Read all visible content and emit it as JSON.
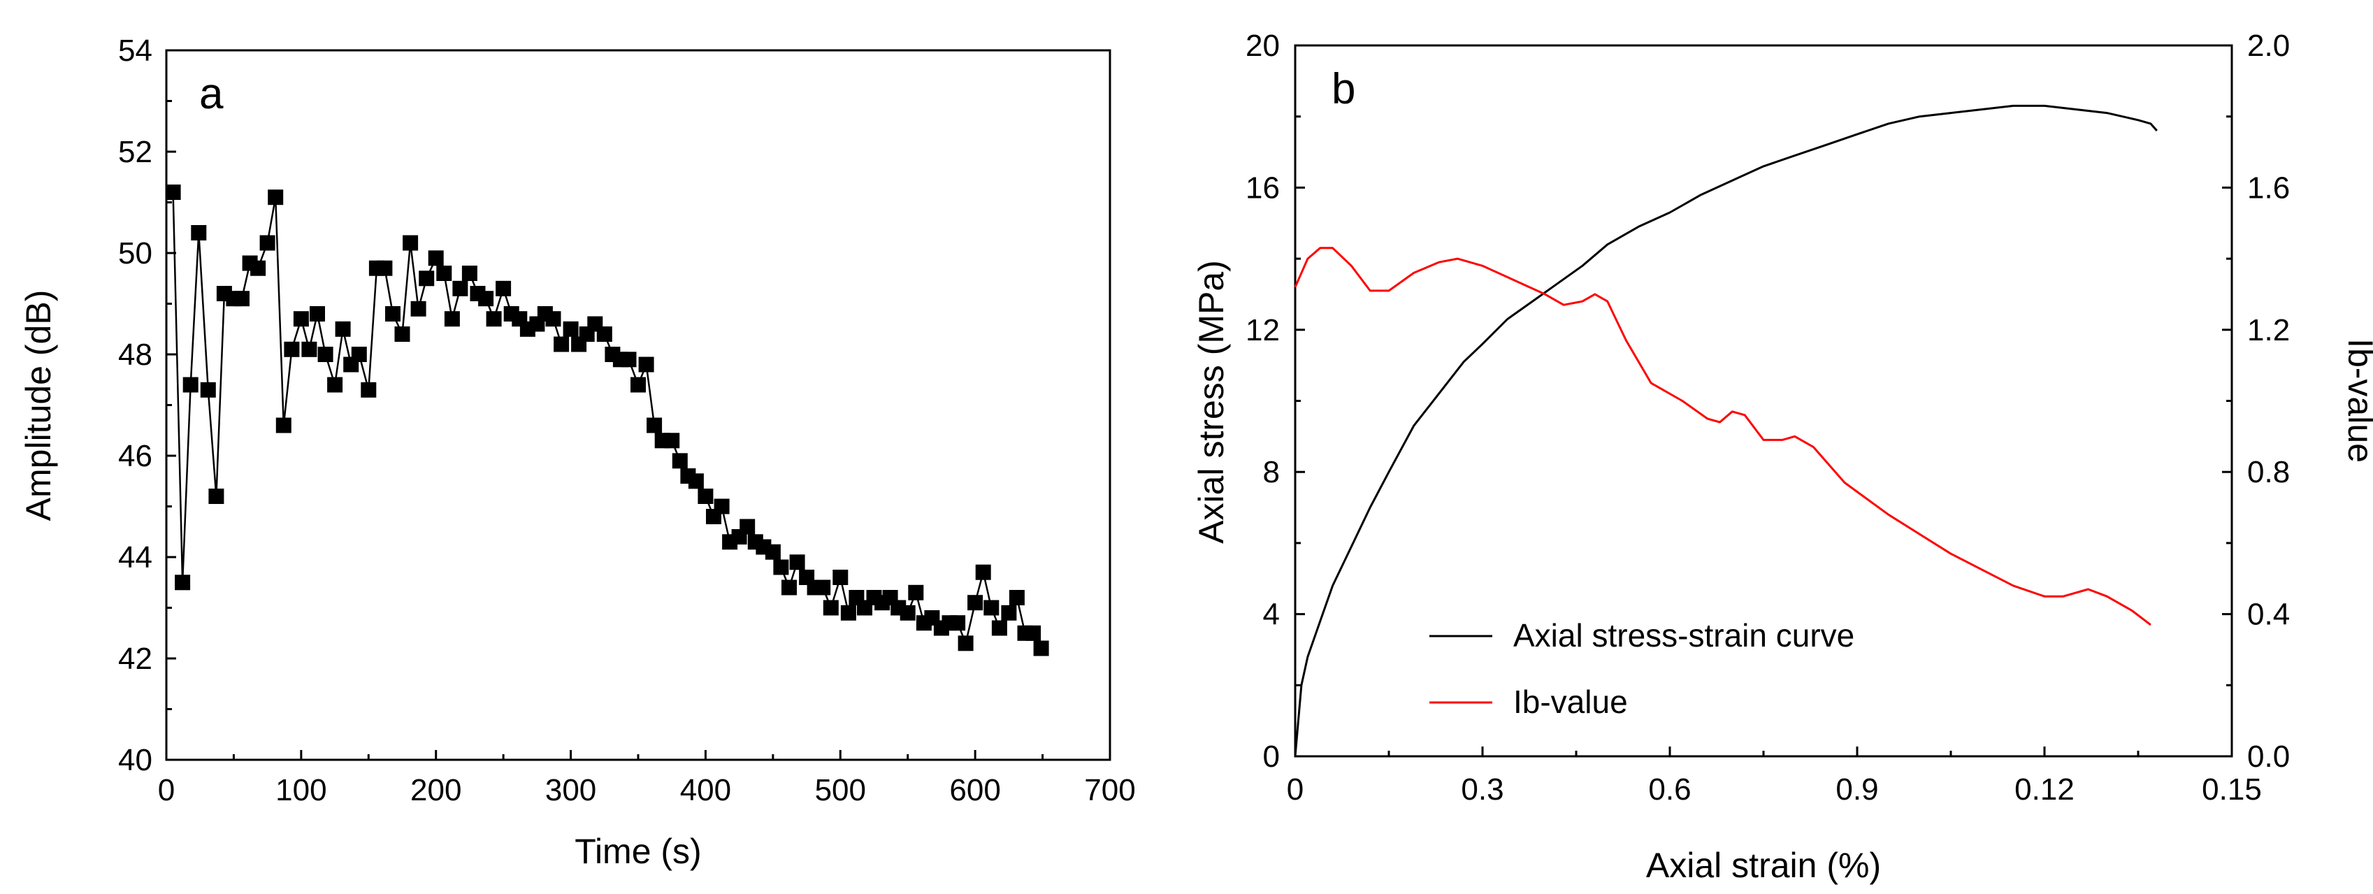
{
  "chart_data": [
    {
      "type": "line",
      "panel_label": "a",
      "xlabel": "Time (s)",
      "ylabel": "Amplitude (dB)",
      "xlim": [
        0,
        700
      ],
      "ylim": [
        40,
        54
      ],
      "xticks": [
        "0",
        "100",
        "200",
        "300",
        "400",
        "500",
        "600",
        "700"
      ],
      "yticks": [
        "40",
        "42",
        "44",
        "46",
        "48",
        "50",
        "52",
        "54"
      ],
      "marker": "square",
      "color": "#000000",
      "series": [
        {
          "name": "Amplitude",
          "points": [
            [
              5,
              51.2
            ],
            [
              12,
              43.5
            ],
            [
              18,
              47.4
            ],
            [
              24,
              50.4
            ],
            [
              31,
              47.3
            ],
            [
              37,
              45.2
            ],
            [
              43,
              49.2
            ],
            [
              50,
              49.1
            ],
            [
              56,
              49.1
            ],
            [
              62,
              49.8
            ],
            [
              68,
              49.7
            ],
            [
              75,
              50.2
            ],
            [
              81,
              51.1
            ],
            [
              87,
              46.6
            ],
            [
              93,
              48.1
            ],
            [
              100,
              48.7
            ],
            [
              106,
              48.1
            ],
            [
              112,
              48.8
            ],
            [
              118,
              48.0
            ],
            [
              125,
              47.4
            ],
            [
              131,
              48.5
            ],
            [
              137,
              47.8
            ],
            [
              143,
              48.0
            ],
            [
              150,
              47.3
            ],
            [
              156,
              49.7
            ],
            [
              162,
              49.7
            ],
            [
              168,
              48.8
            ],
            [
              175,
              48.4
            ],
            [
              181,
              50.2
            ],
            [
              187,
              48.9
            ],
            [
              193,
              49.5
            ],
            [
              200,
              49.9
            ],
            [
              206,
              49.6
            ],
            [
              212,
              48.7
            ],
            [
              218,
              49.3
            ],
            [
              225,
              49.6
            ],
            [
              231,
              49.2
            ],
            [
              237,
              49.1
            ],
            [
              243,
              48.7
            ],
            [
              250,
              49.3
            ],
            [
              256,
              48.8
            ],
            [
              262,
              48.7
            ],
            [
              268,
              48.5
            ],
            [
              275,
              48.6
            ],
            [
              281,
              48.8
            ],
            [
              287,
              48.7
            ],
            [
              293,
              48.2
            ],
            [
              300,
              48.5
            ],
            [
              306,
              48.2
            ],
            [
              312,
              48.4
            ],
            [
              318,
              48.6
            ],
            [
              325,
              48.4
            ],
            [
              331,
              48.0
            ],
            [
              337,
              47.9
            ],
            [
              343,
              47.9
            ],
            [
              350,
              47.4
            ],
            [
              356,
              47.8
            ],
            [
              362,
              46.6
            ],
            [
              368,
              46.3
            ],
            [
              375,
              46.3
            ],
            [
              381,
              45.9
            ],
            [
              387,
              45.6
            ],
            [
              393,
              45.5
            ],
            [
              400,
              45.2
            ],
            [
              406,
              44.8
            ],
            [
              412,
              45.0
            ],
            [
              418,
              44.3
            ],
            [
              425,
              44.4
            ],
            [
              431,
              44.6
            ],
            [
              437,
              44.3
            ],
            [
              443,
              44.2
            ],
            [
              450,
              44.1
            ],
            [
              456,
              43.8
            ],
            [
              462,
              43.4
            ],
            [
              468,
              43.9
            ],
            [
              475,
              43.6
            ],
            [
              481,
              43.4
            ],
            [
              487,
              43.4
            ],
            [
              493,
              43.0
            ],
            [
              500,
              43.6
            ],
            [
              506,
              42.9
            ],
            [
              512,
              43.2
            ],
            [
              518,
              43.0
            ],
            [
              525,
              43.2
            ],
            [
              531,
              43.1
            ],
            [
              537,
              43.2
            ],
            [
              543,
              43.0
            ],
            [
              550,
              42.9
            ],
            [
              556,
              43.3
            ],
            [
              562,
              42.7
            ],
            [
              568,
              42.8
            ],
            [
              575,
              42.6
            ],
            [
              581,
              42.7
            ],
            [
              587,
              42.7
            ],
            [
              593,
              42.3
            ],
            [
              600,
              43.1
            ],
            [
              606,
              43.7
            ],
            [
              612,
              43.0
            ],
            [
              618,
              42.6
            ],
            [
              625,
              42.9
            ],
            [
              631,
              43.2
            ],
            [
              637,
              42.5
            ],
            [
              643,
              42.5
            ],
            [
              649,
              42.2
            ]
          ]
        }
      ]
    },
    {
      "type": "line",
      "panel_label": "b",
      "xlabel": "Axial strain (%)",
      "ylabel": "Axial stress (MPa)",
      "y2label": "Ib-value",
      "xlim": [
        0,
        0.15
      ],
      "ylim": [
        0,
        20
      ],
      "y2lim": [
        0,
        2.0
      ],
      "xticks": [
        "0",
        "0.3",
        "0.6",
        "0.9",
        "0.12",
        "0.15"
      ],
      "yticks": [
        "0",
        "4",
        "8",
        "12",
        "16",
        "20"
      ],
      "y2ticks": [
        "0.0",
        "0.4",
        "0.8",
        "1.2",
        "1.6",
        "2.0"
      ],
      "legend_position": "bottom-left",
      "series": [
        {
          "name": "Axial stress-strain curve",
          "axis": "left",
          "color": "#000000",
          "points": [
            [
              0,
              0
            ],
            [
              0.001,
              2.0
            ],
            [
              0.002,
              2.8
            ],
            [
              0.004,
              3.8
            ],
            [
              0.006,
              4.8
            ],
            [
              0.009,
              5.9
            ],
            [
              0.012,
              7.0
            ],
            [
              0.015,
              8.0
            ],
            [
              0.019,
              9.3
            ],
            [
              0.023,
              10.2
            ],
            [
              0.027,
              11.1
            ],
            [
              0.03,
              11.6
            ],
            [
              0.034,
              12.3
            ],
            [
              0.038,
              12.8
            ],
            [
              0.042,
              13.3
            ],
            [
              0.046,
              13.8
            ],
            [
              0.05,
              14.4
            ],
            [
              0.055,
              14.9
            ],
            [
              0.06,
              15.3
            ],
            [
              0.065,
              15.8
            ],
            [
              0.07,
              16.2
            ],
            [
              0.075,
              16.6
            ],
            [
              0.08,
              16.9
            ],
            [
              0.085,
              17.2
            ],
            [
              0.09,
              17.5
            ],
            [
              0.095,
              17.8
            ],
            [
              0.1,
              18.0
            ],
            [
              0.105,
              18.1
            ],
            [
              0.11,
              18.2
            ],
            [
              0.115,
              18.3
            ],
            [
              0.12,
              18.3
            ],
            [
              0.125,
              18.2
            ],
            [
              0.13,
              18.1
            ],
            [
              0.135,
              17.9
            ],
            [
              0.137,
              17.8
            ],
            [
              0.138,
              17.6
            ]
          ]
        },
        {
          "name": "Ib-value",
          "axis": "right",
          "color": "#ff0000",
          "points": [
            [
              0,
              1.32
            ],
            [
              0.002,
              1.4
            ],
            [
              0.004,
              1.43
            ],
            [
              0.006,
              1.43
            ],
            [
              0.009,
              1.38
            ],
            [
              0.012,
              1.31
            ],
            [
              0.015,
              1.31
            ],
            [
              0.019,
              1.36
            ],
            [
              0.023,
              1.39
            ],
            [
              0.026,
              1.4
            ],
            [
              0.03,
              1.38
            ],
            [
              0.035,
              1.34
            ],
            [
              0.04,
              1.3
            ],
            [
              0.043,
              1.27
            ],
            [
              0.046,
              1.28
            ],
            [
              0.048,
              1.3
            ],
            [
              0.05,
              1.28
            ],
            [
              0.053,
              1.17
            ],
            [
              0.057,
              1.05
            ],
            [
              0.062,
              1.0
            ],
            [
              0.066,
              0.95
            ],
            [
              0.068,
              0.94
            ],
            [
              0.07,
              0.97
            ],
            [
              0.072,
              0.96
            ],
            [
              0.075,
              0.89
            ],
            [
              0.078,
              0.89
            ],
            [
              0.08,
              0.9
            ],
            [
              0.083,
              0.87
            ],
            [
              0.088,
              0.77
            ],
            [
              0.095,
              0.68
            ],
            [
              0.105,
              0.57
            ],
            [
              0.115,
              0.48
            ],
            [
              0.12,
              0.45
            ],
            [
              0.123,
              0.45
            ],
            [
              0.127,
              0.47
            ],
            [
              0.13,
              0.45
            ],
            [
              0.134,
              0.41
            ],
            [
              0.137,
              0.37
            ]
          ]
        }
      ]
    }
  ]
}
